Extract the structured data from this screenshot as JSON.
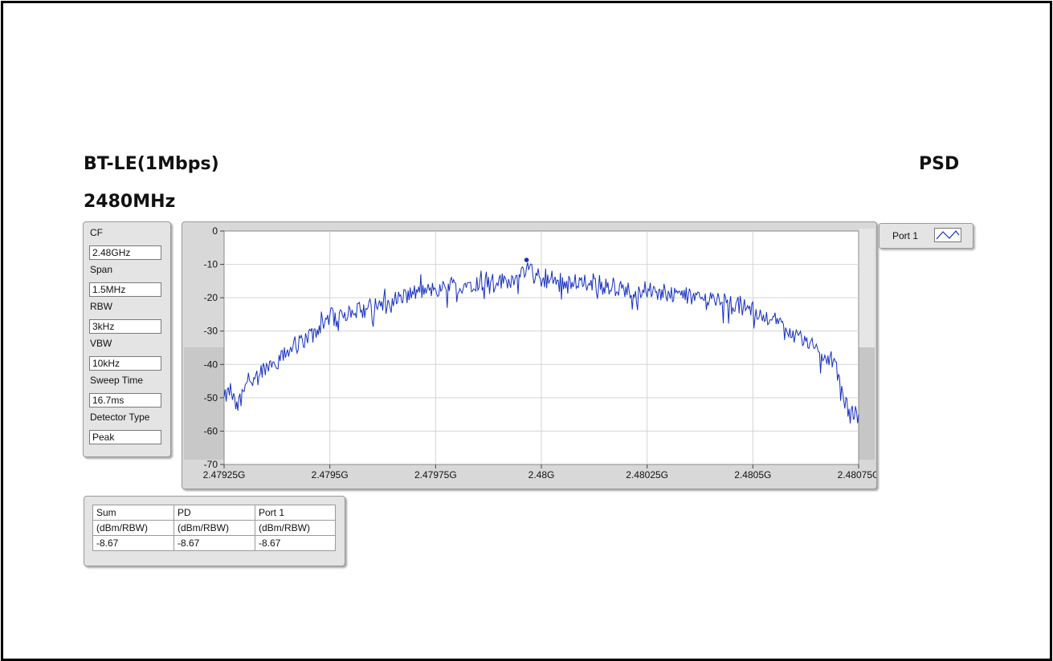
{
  "header": {
    "mode": "BT-LE(1Mbps)",
    "frequency": "2480MHz",
    "panel_title": "PSD"
  },
  "settings": [
    {
      "label": "CF",
      "value": "2.48GHz"
    },
    {
      "label": "Span",
      "value": "1.5MHz"
    },
    {
      "label": "RBW",
      "value": "3kHz"
    },
    {
      "label": "VBW",
      "value": "10kHz"
    },
    {
      "label": "Sweep Time",
      "value": "16.7ms"
    },
    {
      "label": "Detector Type",
      "value": "Peak"
    }
  ],
  "legend": {
    "label": "Port 1"
  },
  "measurements": {
    "headers": [
      "Sum",
      "PD",
      "Port 1"
    ],
    "units": [
      "(dBm/RBW)",
      "(dBm/RBW)",
      "(dBm/RBW)"
    ],
    "values": [
      "-8.67",
      "-8.67",
      "-8.67"
    ]
  },
  "colors": {
    "trace": "#1530c0",
    "marker": "#1530c0",
    "plot_bg": "#ffffff",
    "grid": "#d4d4d4",
    "panel_bg": "#d8d8d8",
    "scrollbar_bg": "#c4c4c4"
  },
  "chart_data": {
    "type": "line",
    "xlabel": "",
    "ylabel": "",
    "xlim": [
      2.47925,
      2.48075
    ],
    "ylim": [
      -70,
      0
    ],
    "x_ticks": [
      2.47925,
      2.4795,
      2.47975,
      2.48,
      2.48025,
      2.4805,
      2.48075
    ],
    "x_tick_labels": [
      "2.47925G",
      "2.4795G",
      "2.47975G",
      "2.48G",
      "2.48025G",
      "2.4805G",
      "2.48075G"
    ],
    "y_ticks": [
      0,
      -10,
      -20,
      -30,
      -40,
      -50,
      -60,
      -70
    ],
    "y_tick_labels": [
      "0",
      "-10",
      "-20",
      "-30",
      "-40",
      "-50",
      "-60",
      "-70"
    ],
    "grid": true,
    "series": [
      {
        "name": "Port 1",
        "x": [
          2.47925,
          2.479265,
          2.47928,
          2.4793,
          2.47932,
          2.47935,
          2.47938,
          2.4794,
          2.47943,
          2.47945,
          2.47948,
          2.4795,
          2.47955,
          2.4796,
          2.47965,
          2.4797,
          2.47975,
          2.4798,
          2.47985,
          2.4799,
          2.47995,
          2.479965,
          2.48,
          2.48005,
          2.4801,
          2.48015,
          2.4802,
          2.48025,
          2.4803,
          2.48035,
          2.4804,
          2.48045,
          2.4805,
          2.48055,
          2.4806,
          2.48065,
          2.4807,
          2.48073,
          2.48075
        ],
        "y": [
          -49,
          -46,
          -52,
          -44,
          -42,
          -39,
          -37,
          -35,
          -32,
          -30,
          -27,
          -24,
          -23,
          -21,
          -19,
          -17,
          -16,
          -15,
          -14,
          -13.5,
          -13,
          -8.67,
          -13,
          -14,
          -14.5,
          -15,
          -16,
          -16,
          -17,
          -18,
          -19,
          -20,
          -22,
          -25,
          -29,
          -34,
          -40,
          -55,
          -49
        ]
      }
    ],
    "marker": {
      "x": 2.479965,
      "y": -8.67
    }
  }
}
